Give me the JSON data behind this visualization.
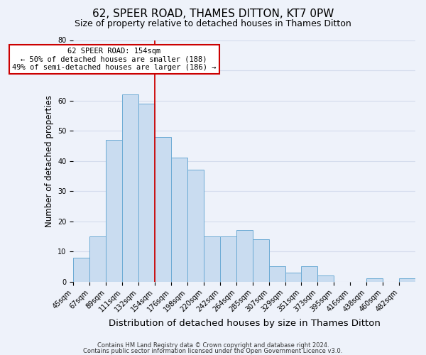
{
  "title": "62, SPEER ROAD, THAMES DITTON, KT7 0PW",
  "subtitle": "Size of property relative to detached houses in Thames Ditton",
  "xlabel": "Distribution of detached houses by size in Thames Ditton",
  "ylabel": "Number of detached properties",
  "bin_labels": [
    "45sqm",
    "67sqm",
    "89sqm",
    "111sqm",
    "132sqm",
    "154sqm",
    "176sqm",
    "198sqm",
    "220sqm",
    "242sqm",
    "264sqm",
    "285sqm",
    "307sqm",
    "329sqm",
    "351sqm",
    "373sqm",
    "395sqm",
    "416sqm",
    "438sqm",
    "460sqm",
    "482sqm"
  ],
  "bar_values": [
    8,
    15,
    47,
    62,
    59,
    48,
    41,
    37,
    15,
    15,
    17,
    14,
    5,
    3,
    5,
    2,
    0,
    0,
    1,
    0,
    1
  ],
  "bar_color": "#c9dcf0",
  "bar_edge_color": "#6aaad4",
  "vline_index": 5,
  "vline_color": "#cc0000",
  "annotation_lines": [
    "62 SPEER ROAD: 154sqm",
    "← 50% of detached houses are smaller (188)",
    "49% of semi-detached houses are larger (186) →"
  ],
  "annotation_box_color": "#ffffff",
  "annotation_box_edge_color": "#cc0000",
  "ylim": [
    0,
    80
  ],
  "yticks": [
    0,
    10,
    20,
    30,
    40,
    50,
    60,
    70,
    80
  ],
  "grid_color": "#d4dced",
  "background_color": "#eef2fa",
  "footer_lines": [
    "Contains HM Land Registry data © Crown copyright and database right 2024.",
    "Contains public sector information licensed under the Open Government Licence v3.0."
  ],
  "title_fontsize": 11,
  "subtitle_fontsize": 9,
  "xlabel_fontsize": 9.5,
  "ylabel_fontsize": 8.5,
  "tick_fontsize": 7,
  "footer_fontsize": 6,
  "annotation_fontsize": 7.5
}
